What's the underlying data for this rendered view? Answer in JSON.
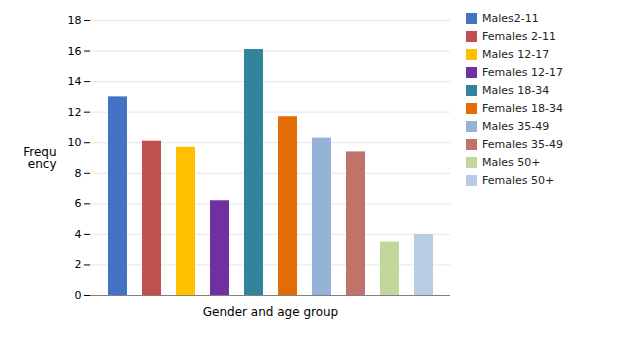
{
  "chart_data": {
    "type": "bar",
    "categories": [
      "Males2-11",
      "Females 2-11",
      "Males 12-17",
      "Females 12-17",
      "Males 18-34",
      "Females 18-34",
      "Males 35-49",
      "Females 35-49",
      "Males 50+",
      "Females 50+"
    ],
    "values": [
      13,
      10.1,
      9.7,
      6.2,
      16.1,
      11.7,
      10.3,
      9.4,
      3.5,
      4.0
    ],
    "colors": [
      "#4472C4",
      "#C0504D",
      "#FFC000",
      "#7030A0",
      "#31849B",
      "#E36C09",
      "#95B3D7",
      "#C0726B",
      "#C4D79B",
      "#B8CCE4"
    ],
    "xlabel": "Gender and age group",
    "ylabel": "Frequ\nency",
    "ylim": [
      0,
      18
    ],
    "yticks": [
      0,
      2,
      4,
      6,
      8,
      10,
      12,
      14,
      16,
      18
    ],
    "grid": true,
    "legend": "right",
    "tick_labels": "y"
  }
}
